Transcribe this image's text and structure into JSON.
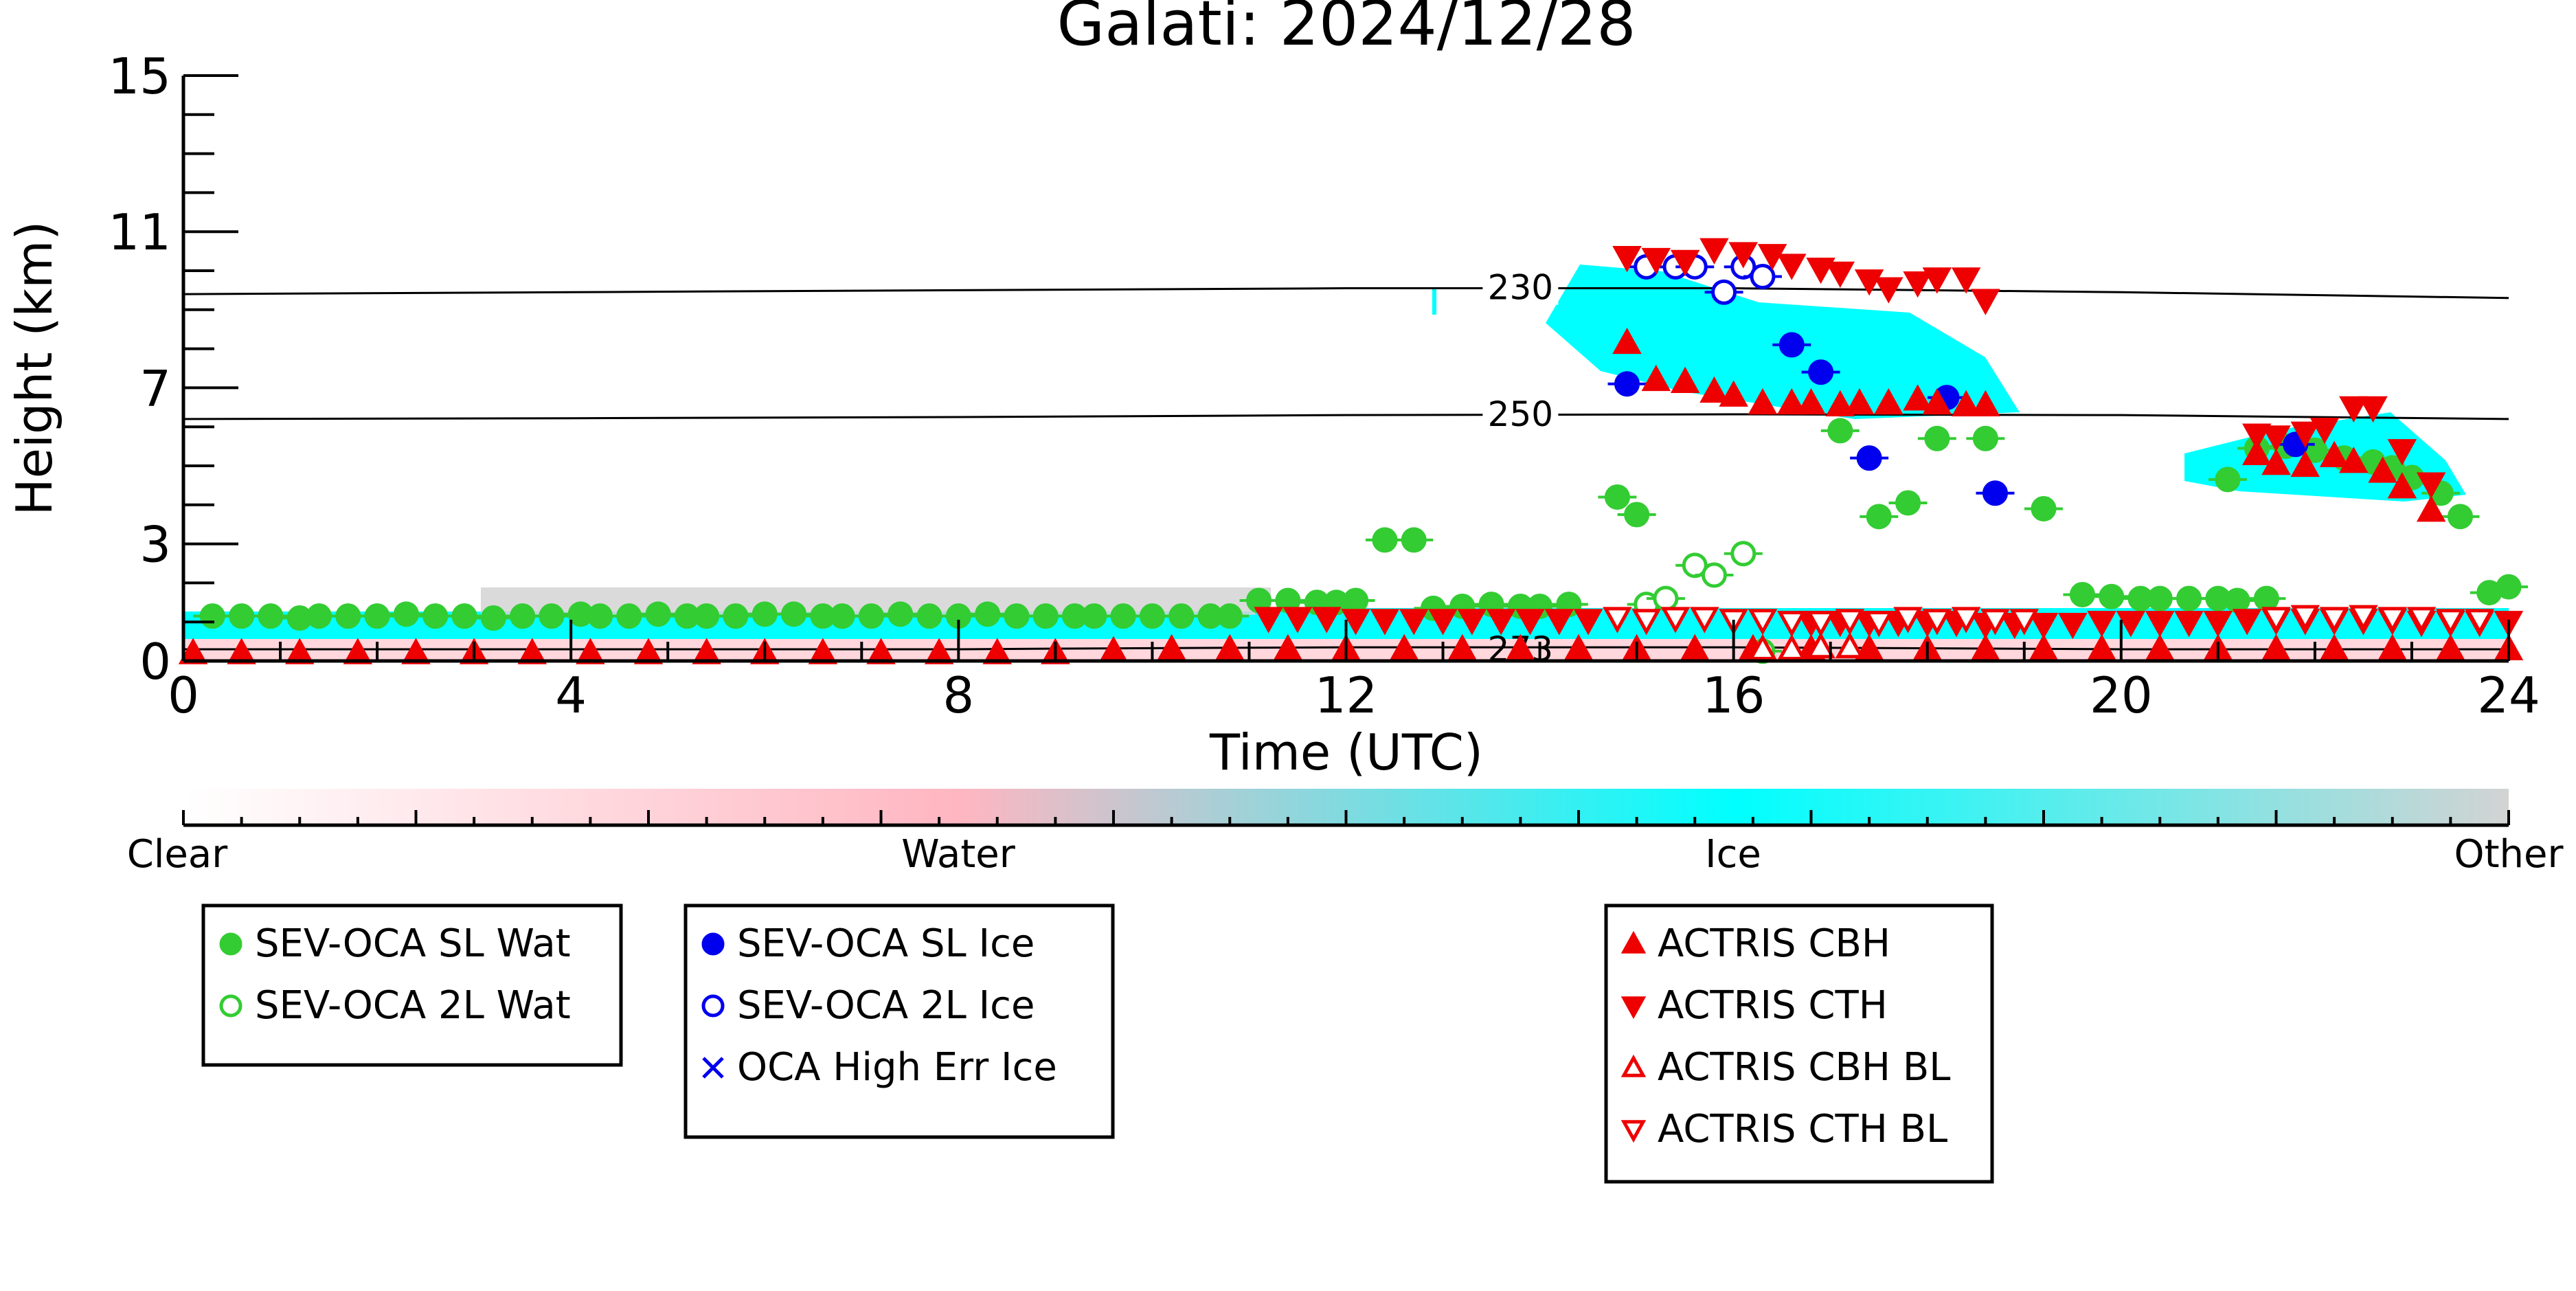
{
  "chart_data": {
    "type": "scatter",
    "title": "Galati: 2024/12/28",
    "xlabel": "Time (UTC)",
    "ylabel": "Height (km)",
    "xlim": [
      0,
      24
    ],
    "ylim": [
      0,
      15
    ],
    "x_ticks": [
      "0",
      "4",
      "8",
      "12",
      "16",
      "20",
      "24"
    ],
    "y_ticks": [
      "0",
      "3",
      "7",
      "11",
      "15"
    ],
    "y_tick_values": [
      0,
      3,
      7,
      11,
      15
    ],
    "contours": [
      {
        "label": "230",
        "points": [
          [
            0,
            9.4
          ],
          [
            4,
            9.45
          ],
          [
            8,
            9.5
          ],
          [
            12,
            9.55
          ],
          [
            16,
            9.55
          ],
          [
            20,
            9.45
          ],
          [
            24,
            9.3
          ]
        ]
      },
      {
        "label": "250",
        "points": [
          [
            0,
            6.2
          ],
          [
            4,
            6.22
          ],
          [
            8,
            6.25
          ],
          [
            12,
            6.3
          ],
          [
            16,
            6.32
          ],
          [
            20,
            6.3
          ],
          [
            24,
            6.2
          ]
        ]
      },
      {
        "label": "273",
        "points": [
          [
            0,
            0.3
          ],
          [
            4,
            0.3
          ],
          [
            8,
            0.3
          ],
          [
            9.3,
            0.32
          ],
          [
            12,
            0.35
          ],
          [
            16,
            0.35
          ],
          [
            20,
            0.3
          ],
          [
            24,
            0.3
          ]
        ]
      }
    ],
    "colorbar": {
      "labels": [
        "Clear",
        "Water",
        "Ice",
        "Other"
      ],
      "colors": [
        "#ffffff",
        "#ffb6c1",
        "#00ffff",
        "#d3d3d3"
      ]
    },
    "series": [
      {
        "name": "SEV-OCA SL Wat",
        "color": "#33cc33",
        "marker": "filled-circle",
        "points": [
          [
            0.3,
            1.15
          ],
          [
            0.6,
            1.15
          ],
          [
            0.9,
            1.15
          ],
          [
            1.2,
            1.1
          ],
          [
            1.4,
            1.15
          ],
          [
            1.7,
            1.15
          ],
          [
            2.0,
            1.15
          ],
          [
            2.3,
            1.2
          ],
          [
            2.6,
            1.15
          ],
          [
            2.9,
            1.15
          ],
          [
            3.2,
            1.1
          ],
          [
            3.5,
            1.15
          ],
          [
            3.8,
            1.15
          ],
          [
            4.1,
            1.2
          ],
          [
            4.3,
            1.15
          ],
          [
            4.6,
            1.15
          ],
          [
            4.9,
            1.2
          ],
          [
            5.2,
            1.15
          ],
          [
            5.4,
            1.15
          ],
          [
            5.7,
            1.15
          ],
          [
            6.0,
            1.2
          ],
          [
            6.3,
            1.2
          ],
          [
            6.6,
            1.15
          ],
          [
            6.8,
            1.15
          ],
          [
            7.1,
            1.15
          ],
          [
            7.4,
            1.2
          ],
          [
            7.7,
            1.15
          ],
          [
            8.0,
            1.15
          ],
          [
            8.3,
            1.2
          ],
          [
            8.6,
            1.15
          ],
          [
            8.9,
            1.15
          ],
          [
            9.2,
            1.15
          ],
          [
            9.4,
            1.15
          ],
          [
            9.7,
            1.15
          ],
          [
            10.0,
            1.15
          ],
          [
            10.3,
            1.15
          ],
          [
            10.6,
            1.15
          ],
          [
            10.8,
            1.15
          ],
          [
            11.1,
            1.55
          ],
          [
            11.4,
            1.55
          ],
          [
            11.7,
            1.5
          ],
          [
            11.9,
            1.5
          ],
          [
            12.1,
            1.55
          ],
          [
            12.4,
            3.1
          ],
          [
            12.7,
            3.1
          ],
          [
            12.9,
            1.35
          ],
          [
            13.2,
            1.4
          ],
          [
            13.5,
            1.45
          ],
          [
            13.8,
            1.4
          ],
          [
            14.0,
            1.4
          ],
          [
            14.3,
            1.45
          ],
          [
            14.8,
            4.2
          ],
          [
            15.0,
            3.75
          ],
          [
            17.1,
            5.9
          ],
          [
            17.5,
            3.7
          ],
          [
            17.8,
            4.05
          ],
          [
            18.1,
            5.7
          ],
          [
            18.6,
            5.7
          ],
          [
            19.2,
            3.9
          ],
          [
            19.6,
            1.7
          ],
          [
            19.9,
            1.65
          ],
          [
            20.2,
            1.6
          ],
          [
            20.4,
            1.6
          ],
          [
            20.7,
            1.6
          ],
          [
            21.0,
            1.6
          ],
          [
            21.2,
            1.55
          ],
          [
            21.5,
            1.6
          ],
          [
            21.1,
            4.65
          ],
          [
            21.4,
            5.45
          ],
          [
            21.7,
            5.5
          ],
          [
            22.0,
            5.4
          ],
          [
            22.3,
            5.2
          ],
          [
            22.6,
            5.1
          ],
          [
            22.8,
            4.95
          ],
          [
            23.0,
            4.7
          ],
          [
            23.3,
            4.3
          ],
          [
            23.5,
            3.7
          ],
          [
            23.8,
            1.75
          ],
          [
            24.0,
            1.9
          ]
        ]
      },
      {
        "name": "SEV-OCA 2L Wat",
        "color": "#33cc33",
        "marker": "open-circle",
        "points": [
          [
            15.1,
            1.45
          ],
          [
            15.3,
            1.6
          ],
          [
            15.6,
            2.45
          ],
          [
            15.8,
            2.2
          ],
          [
            16.1,
            2.75
          ],
          [
            16.3,
            0.25
          ]
        ]
      },
      {
        "name": "SEV-OCA SL Ice",
        "color": "#0000ee",
        "marker": "filled-circle",
        "points": [
          [
            14.9,
            7.1
          ],
          [
            16.6,
            8.1
          ],
          [
            16.9,
            7.4
          ],
          [
            17.4,
            5.2
          ],
          [
            18.2,
            6.75
          ],
          [
            18.7,
            4.3
          ],
          [
            21.8,
            5.55
          ]
        ]
      },
      {
        "name": "SEV-OCA 2L Ice",
        "color": "#0000ee",
        "marker": "open-circle",
        "points": [
          [
            15.1,
            10.1
          ],
          [
            15.4,
            10.1
          ],
          [
            15.6,
            10.1
          ],
          [
            15.9,
            9.45
          ],
          [
            16.1,
            10.1
          ],
          [
            16.3,
            9.85
          ]
        ]
      },
      {
        "name": "OCA High Err Ice",
        "color": "#0000ee",
        "marker": "x",
        "points": []
      },
      {
        "name": "ACTRIS CBH",
        "color": "#ee0000",
        "marker": "filled-triangle-up",
        "points": [
          [
            14.9,
            8.15
          ],
          [
            15.2,
            7.2
          ],
          [
            15.5,
            7.15
          ],
          [
            15.8,
            6.9
          ],
          [
            16.0,
            6.8
          ],
          [
            16.3,
            6.6
          ],
          [
            16.6,
            6.6
          ],
          [
            16.8,
            6.6
          ],
          [
            17.1,
            6.55
          ],
          [
            17.3,
            6.6
          ],
          [
            17.6,
            6.6
          ],
          [
            17.9,
            6.7
          ],
          [
            18.1,
            6.6
          ],
          [
            18.4,
            6.55
          ],
          [
            18.6,
            6.55
          ],
          [
            21.4,
            5.3
          ],
          [
            21.6,
            5.05
          ],
          [
            21.9,
            5.0
          ],
          [
            22.2,
            5.25
          ],
          [
            22.4,
            5.1
          ],
          [
            22.7,
            4.85
          ],
          [
            22.9,
            4.45
          ],
          [
            23.2,
            3.85
          ],
          [
            0.1,
            0.2
          ],
          [
            0.6,
            0.2
          ],
          [
            1.2,
            0.2
          ],
          [
            1.8,
            0.2
          ],
          [
            2.4,
            0.2
          ],
          [
            3.0,
            0.2
          ],
          [
            3.6,
            0.2
          ],
          [
            4.2,
            0.2
          ],
          [
            4.8,
            0.2
          ],
          [
            5.4,
            0.2
          ],
          [
            6.0,
            0.2
          ],
          [
            6.6,
            0.2
          ],
          [
            7.2,
            0.2
          ],
          [
            7.8,
            0.2
          ],
          [
            8.4,
            0.2
          ],
          [
            9.0,
            0.2
          ],
          [
            9.6,
            0.25
          ],
          [
            10.2,
            0.3
          ],
          [
            10.8,
            0.3
          ],
          [
            11.4,
            0.3
          ],
          [
            12.0,
            0.3
          ],
          [
            12.6,
            0.3
          ],
          [
            13.2,
            0.3
          ],
          [
            13.8,
            0.3
          ],
          [
            14.4,
            0.3
          ],
          [
            15.0,
            0.3
          ],
          [
            15.6,
            0.3
          ],
          [
            16.2,
            0.3
          ],
          [
            16.8,
            0.3
          ],
          [
            17.4,
            0.3
          ],
          [
            18.0,
            0.3
          ],
          [
            18.6,
            0.3
          ],
          [
            19.2,
            0.3
          ],
          [
            19.8,
            0.3
          ],
          [
            20.4,
            0.3
          ],
          [
            21.0,
            0.3
          ],
          [
            21.6,
            0.3
          ],
          [
            22.2,
            0.3
          ],
          [
            22.8,
            0.3
          ],
          [
            23.4,
            0.3
          ],
          [
            24.0,
            0.3
          ]
        ]
      },
      {
        "name": "ACTRIS CTH",
        "color": "#ee0000",
        "marker": "filled-triangle-down",
        "points": [
          [
            14.9,
            10.35
          ],
          [
            15.2,
            10.3
          ],
          [
            15.5,
            10.25
          ],
          [
            15.8,
            10.55
          ],
          [
            16.1,
            10.45
          ],
          [
            16.4,
            10.4
          ],
          [
            16.6,
            10.15
          ],
          [
            16.9,
            10.05
          ],
          [
            17.1,
            9.95
          ],
          [
            17.4,
            9.75
          ],
          [
            17.6,
            9.55
          ],
          [
            17.9,
            9.7
          ],
          [
            18.1,
            9.8
          ],
          [
            18.4,
            9.8
          ],
          [
            18.6,
            9.25
          ],
          [
            21.4,
            5.8
          ],
          [
            21.6,
            5.75
          ],
          [
            21.9,
            5.85
          ],
          [
            22.1,
            5.95
          ],
          [
            22.4,
            6.5
          ],
          [
            22.6,
            6.5
          ],
          [
            22.9,
            5.4
          ],
          [
            23.2,
            4.55
          ],
          [
            11.2,
            1.1
          ],
          [
            11.5,
            1.1
          ],
          [
            11.8,
            1.1
          ],
          [
            12.1,
            1.05
          ],
          [
            12.4,
            1.05
          ],
          [
            12.7,
            1.05
          ],
          [
            13.0,
            1.05
          ],
          [
            13.3,
            1.05
          ],
          [
            13.6,
            1.05
          ],
          [
            13.9,
            1.05
          ],
          [
            14.2,
            1.05
          ],
          [
            14.5,
            1.05
          ],
          [
            16.8,
            1.0
          ],
          [
            17.1,
            1.0
          ],
          [
            17.4,
            1.0
          ],
          [
            17.7,
            1.0
          ],
          [
            18.0,
            1.0
          ],
          [
            18.3,
            1.0
          ],
          [
            18.6,
            0.95
          ],
          [
            18.9,
            0.95
          ],
          [
            19.2,
            0.95
          ],
          [
            19.5,
            0.95
          ],
          [
            19.8,
            1.0
          ],
          [
            20.1,
            1.0
          ],
          [
            20.4,
            1.0
          ],
          [
            20.7,
            1.0
          ],
          [
            21.0,
            1.0
          ],
          [
            21.3,
            1.05
          ],
          [
            21.6,
            1.05
          ],
          [
            21.9,
            1.05
          ],
          [
            22.2,
            1.05
          ],
          [
            22.5,
            1.05
          ],
          [
            22.8,
            1.05
          ],
          [
            23.1,
            1.0
          ],
          [
            23.4,
            1.0
          ],
          [
            23.7,
            1.0
          ],
          [
            24.0,
            1.0
          ]
        ]
      },
      {
        "name": "ACTRIS CBH BL",
        "color": "#ee0000",
        "marker": "open-triangle-up",
        "points": [
          [
            16.3,
            0.3
          ],
          [
            16.6,
            0.3
          ],
          [
            16.9,
            0.35
          ],
          [
            17.2,
            0.35
          ]
        ]
      },
      {
        "name": "ACTRIS CTH BL",
        "color": "#ee0000",
        "marker": "open-triangle-down",
        "points": [
          [
            14.8,
            1.1
          ],
          [
            15.1,
            1.05
          ],
          [
            15.4,
            1.1
          ],
          [
            15.7,
            1.1
          ],
          [
            16.0,
            1.05
          ],
          [
            16.3,
            1.05
          ],
          [
            16.6,
            1.0
          ],
          [
            16.9,
            1.0
          ],
          [
            17.2,
            1.05
          ],
          [
            17.5,
            1.0
          ],
          [
            17.8,
            1.1
          ],
          [
            18.1,
            1.05
          ],
          [
            18.4,
            1.1
          ],
          [
            18.7,
            1.05
          ],
          [
            19.0,
            1.05
          ],
          [
            21.6,
            1.1
          ],
          [
            21.9,
            1.15
          ],
          [
            22.2,
            1.1
          ],
          [
            22.5,
            1.15
          ],
          [
            22.8,
            1.1
          ],
          [
            23.1,
            1.1
          ],
          [
            23.4,
            1.05
          ],
          [
            23.7,
            1.05
          ]
        ]
      }
    ],
    "legend_boxes": [
      [
        "SEV-OCA SL Wat",
        "SEV-OCA 2L Wat"
      ],
      [
        "SEV-OCA SL Ice",
        "SEV-OCA 2L Ice",
        "OCA High Err Ice"
      ],
      [
        "ACTRIS CBH",
        "ACTRIS CTH",
        "ACTRIS CBH BL",
        "ACTRIS CTH BL"
      ]
    ]
  }
}
